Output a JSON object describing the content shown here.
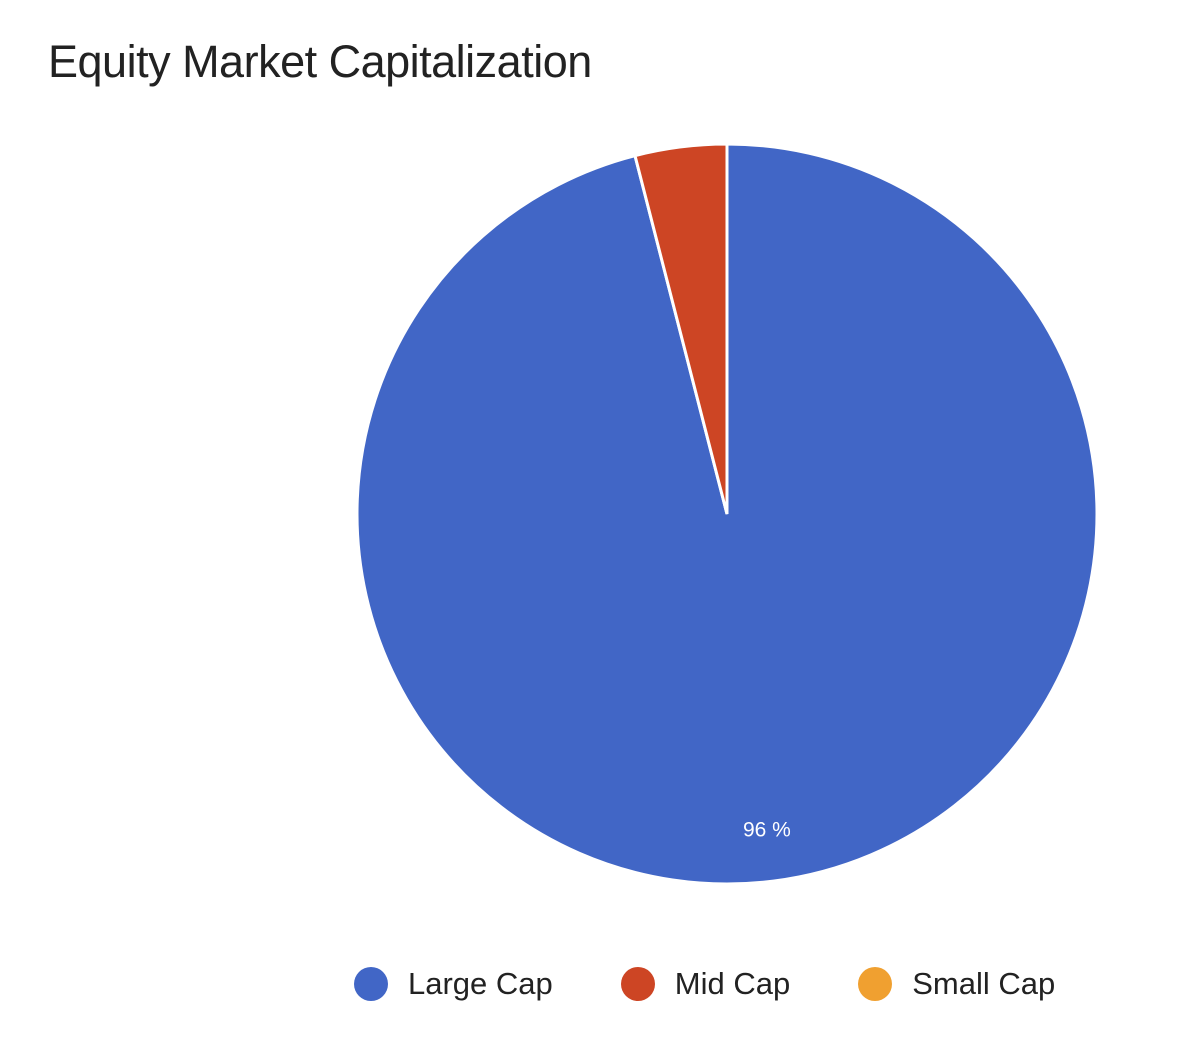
{
  "chart_data": {
    "type": "pie",
    "title": "Equity Market Capitalization",
    "slices": [
      {
        "label": "Large Cap",
        "value": 96,
        "color": "#4166c6"
      },
      {
        "label": "Mid Cap",
        "value": 4,
        "color": "#cd4524"
      },
      {
        "label": "Small Cap",
        "value": 0,
        "color": "#f0a030"
      }
    ],
    "data_labels": [
      "96 %"
    ],
    "legend": {
      "position": "bottom"
    }
  }
}
